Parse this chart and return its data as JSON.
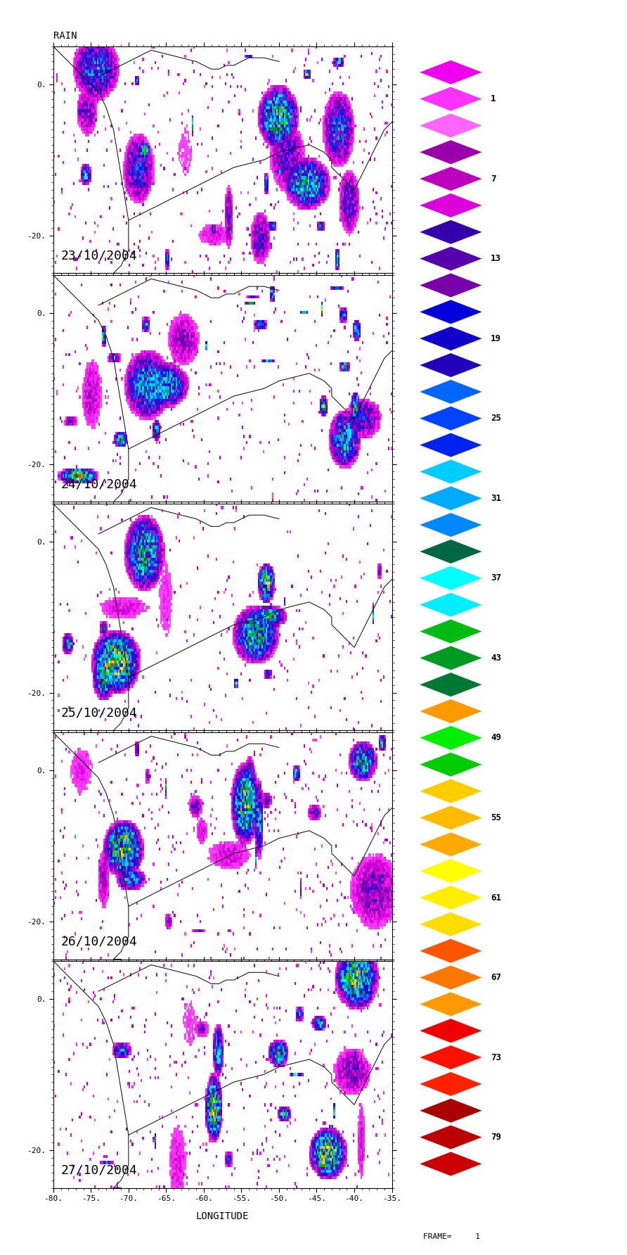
{
  "title": "RAIN",
  "dates": [
    "23/10/2004",
    "24/10/2004",
    "25/10/2004",
    "26/10/2004",
    "27/10/2004"
  ],
  "lon_min": -80,
  "lon_max": -35,
  "lat_min": -25,
  "lat_max": 5,
  "lon_ticks": [
    -80,
    -75,
    -70,
    -65,
    -60,
    -55,
    -50,
    -45,
    -40,
    -35
  ],
  "lat_ticks": [
    0,
    -20
  ],
  "xlabel": "LONGITUDE",
  "frame_label": "FRAME=     1",
  "legend_entries": [
    {
      "val": 1,
      "colors": [
        "#FF66FF",
        "#FF33FF",
        "#EE00EE"
      ]
    },
    {
      "val": 7,
      "colors": [
        "#DD00DD",
        "#BB00BB",
        "#9900AA"
      ]
    },
    {
      "val": 13,
      "colors": [
        "#7700AA",
        "#5500AA",
        "#3300AA"
      ]
    },
    {
      "val": 19,
      "colors": [
        "#2200BB",
        "#1100CC",
        "#0000DD"
      ]
    },
    {
      "val": 25,
      "colors": [
        "#0022EE",
        "#0044FF",
        "#0066FF"
      ]
    },
    {
      "val": 31,
      "colors": [
        "#0088FF",
        "#00AAFF",
        "#00CCFF"
      ]
    },
    {
      "val": 37,
      "colors": [
        "#00EEFF",
        "#00FFFF",
        "#006644"
      ]
    },
    {
      "val": 43,
      "colors": [
        "#007733",
        "#009922",
        "#00BB11"
      ]
    },
    {
      "val": 49,
      "colors": [
        "#00CC00",
        "#00EE00",
        "#FF9900"
      ]
    },
    {
      "val": 55,
      "colors": [
        "#FFAA00",
        "#FFBB00",
        "#FFCC00"
      ]
    },
    {
      "val": 61,
      "colors": [
        "#FFDD00",
        "#FFEE00",
        "#FFFF00"
      ]
    },
    {
      "val": 67,
      "colors": [
        "#FF9900",
        "#FF7700",
        "#FF5500"
      ]
    },
    {
      "val": 73,
      "colors": [
        "#FF2200",
        "#FF1100",
        "#EE0000"
      ]
    },
    {
      "val": 79,
      "colors": [
        "#CC0000",
        "#BB0000",
        "#AA0000"
      ]
    }
  ],
  "background_color": "#ffffff"
}
